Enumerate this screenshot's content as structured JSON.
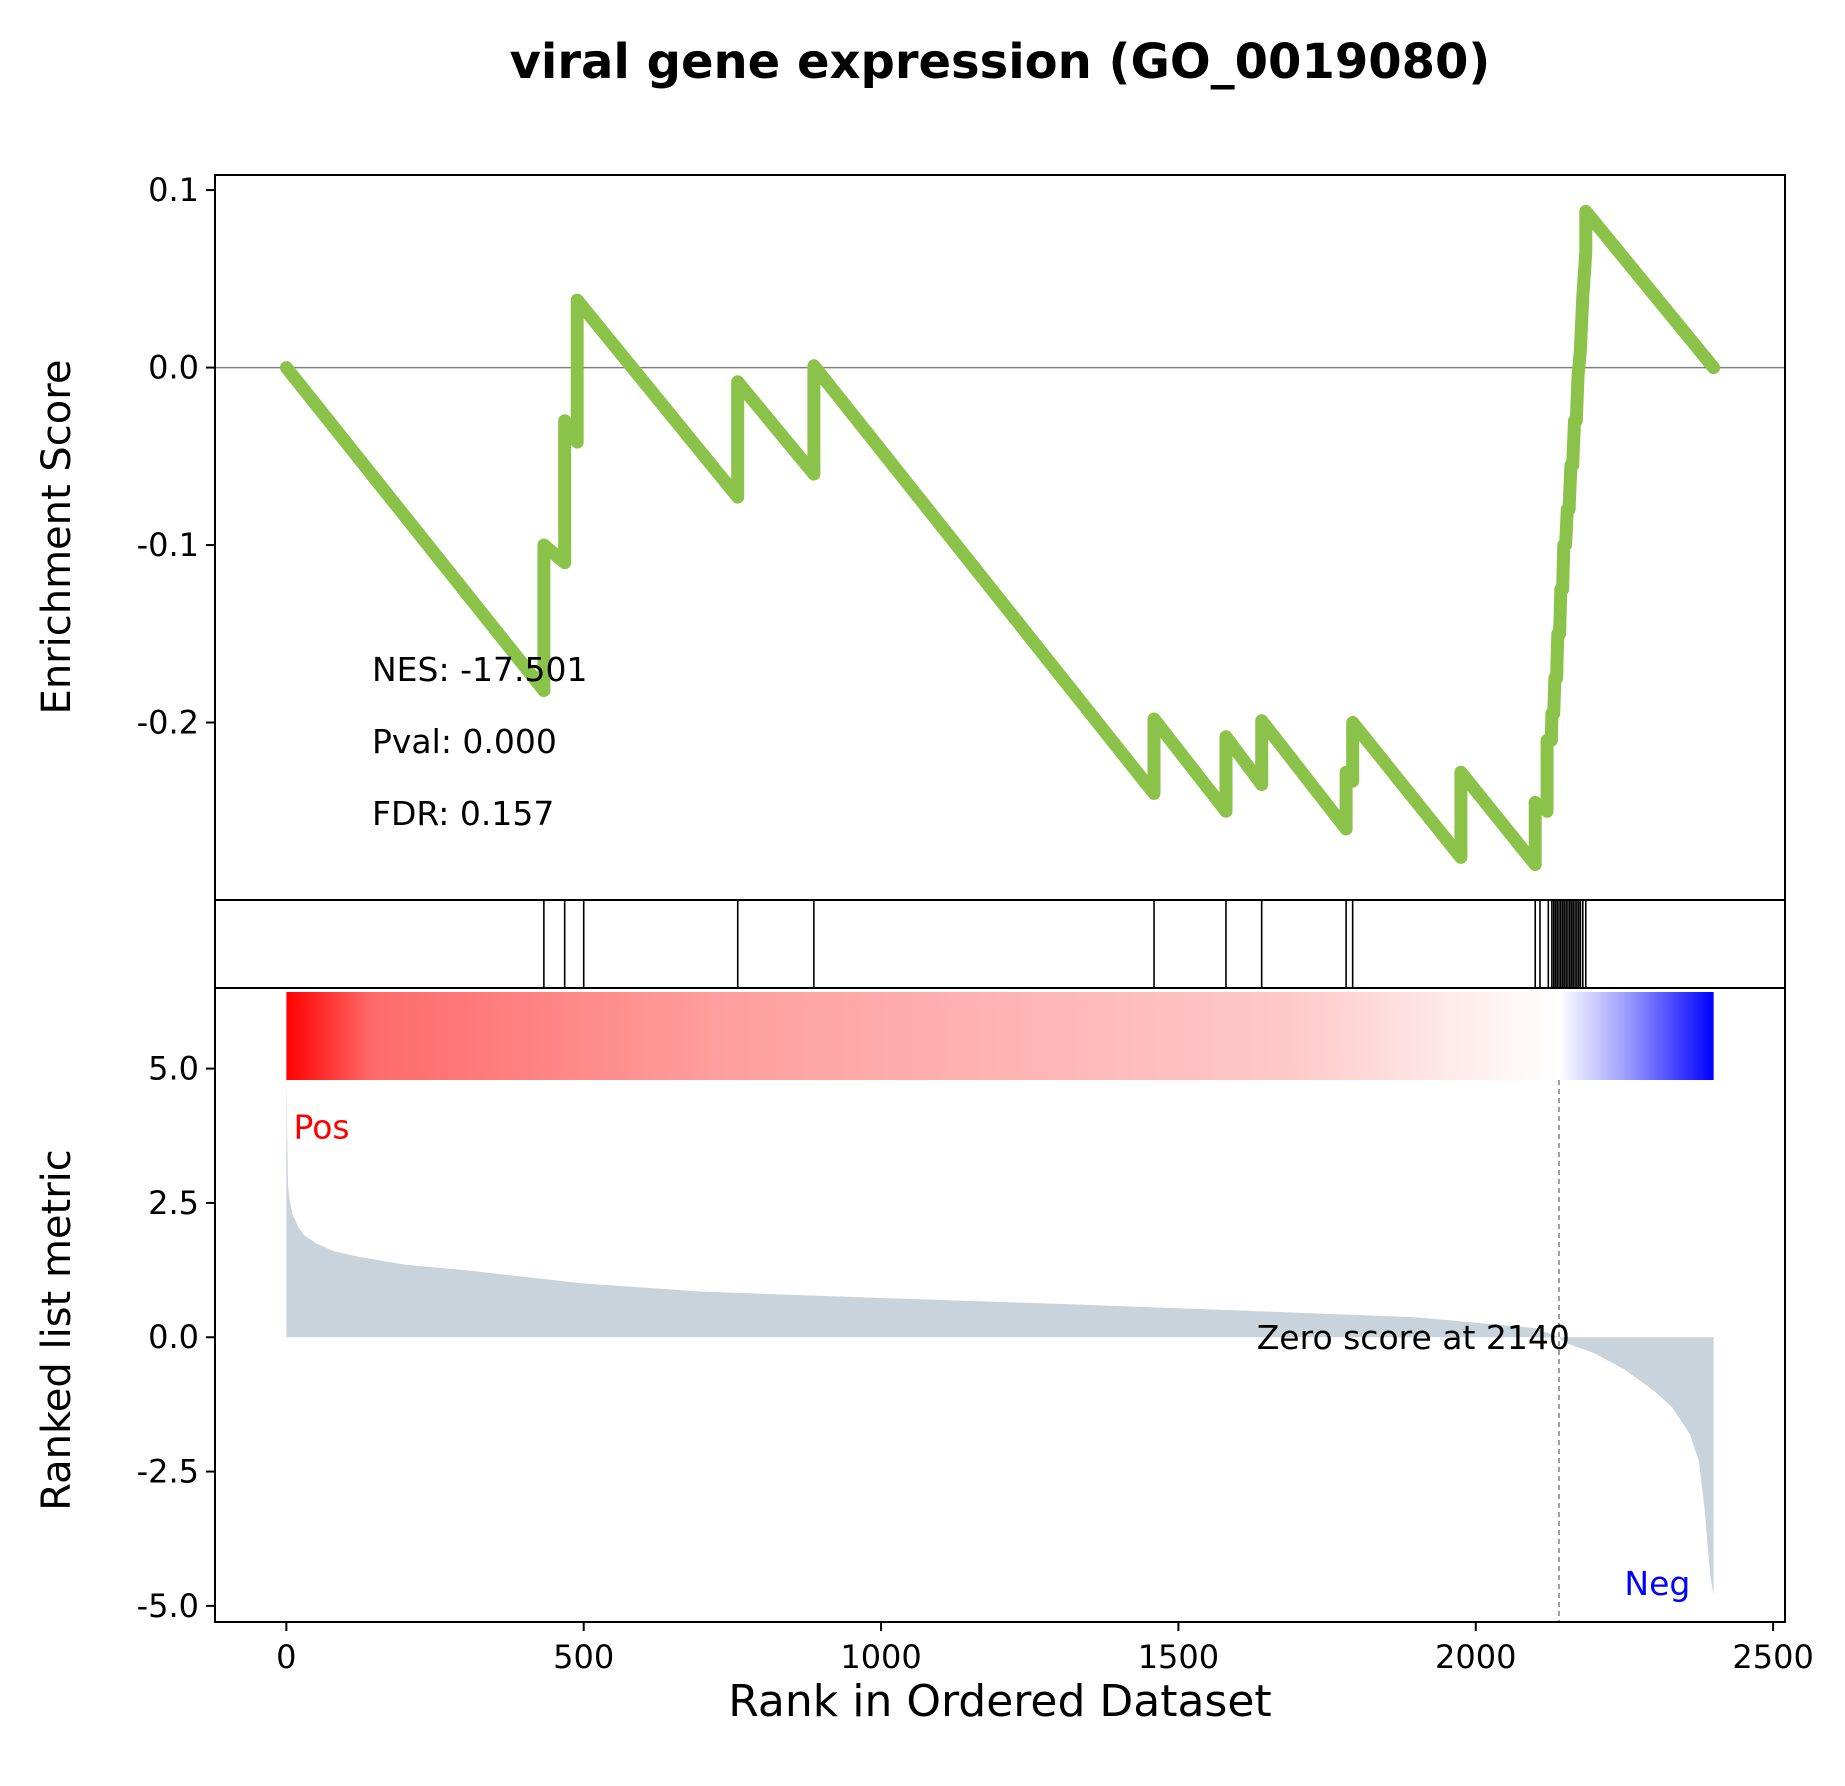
{
  "chart_data": {
    "type": "line",
    "title": "viral gene expression (GO_0019080)",
    "xlabel": "Rank in Ordered Dataset",
    "xlim": [
      -120,
      2520
    ],
    "x_ticks": [
      "0",
      "500",
      "1000",
      "1500",
      "2000",
      "2500"
    ],
    "x_tick_values": [
      0,
      500,
      1000,
      1500,
      2000,
      2500
    ],
    "colors": {
      "es_line": "#8bc34a",
      "metric_fill": "#c9d3db",
      "pos_label": "#ff0000",
      "neg_label": "#0000ff",
      "gradient_pos": "#ff0000",
      "gradient_mid": "#ffffff",
      "gradient_neg": "#0000ff"
    },
    "enrichment": {
      "ylabel": "Enrichment Score",
      "ylim": [
        -0.3,
        0.1
      ],
      "y_ticks": [
        "0.1",
        "0.0",
        "-0.1",
        "-0.2"
      ],
      "y_tick_values": [
        0.1,
        0.0,
        -0.1,
        -0.2
      ],
      "zero_line": true,
      "stats": [
        "NES: -17.501",
        "Pval: 0.000",
        "FDR: 0.157"
      ],
      "series": {
        "x": [
          0,
          433,
          433,
          468,
          468,
          489,
          489,
          759,
          759,
          887,
          887,
          1459,
          1459,
          1580,
          1580,
          1640,
          1640,
          1782,
          1782,
          1793,
          1793,
          1975,
          1975,
          2100,
          2100,
          2120,
          2120,
          2127,
          2128,
          2131,
          2133,
          2136,
          2138,
          2141,
          2143,
          2146,
          2148,
          2151,
          2154,
          2157,
          2160,
          2163,
          2166,
          2169,
          2172,
          2176,
          2180,
          2185,
          2185,
          2400
        ],
        "y": [
          0,
          -0.182,
          -0.1,
          -0.11,
          -0.03,
          -0.042,
          0.038,
          -0.073,
          -0.008,
          -0.06,
          0.001,
          -0.24,
          -0.198,
          -0.25,
          -0.208,
          -0.235,
          -0.199,
          -0.26,
          -0.228,
          -0.233,
          -0.2,
          -0.276,
          -0.228,
          -0.28,
          -0.245,
          -0.25,
          -0.21,
          -0.21,
          -0.195,
          -0.195,
          -0.175,
          -0.175,
          -0.15,
          -0.15,
          -0.125,
          -0.125,
          -0.1,
          -0.1,
          -0.08,
          -0.08,
          -0.055,
          -0.055,
          -0.03,
          -0.03,
          -0.005,
          0.01,
          0.04,
          0.065,
          0.088,
          0.0
        ]
      }
    },
    "hits": {
      "positions": [
        433,
        468,
        500,
        759,
        887,
        1459,
        1580,
        1640,
        1782,
        1793,
        2100,
        2108,
        2122,
        2128,
        2131,
        2134,
        2137,
        2140,
        2143,
        2146,
        2149,
        2152,
        2155,
        2158,
        2161,
        2164,
        2167,
        2170,
        2173,
        2176,
        2180,
        2185
      ]
    },
    "ranked_metric": {
      "ylabel": "Ranked list metric",
      "ylim": [
        -5.3,
        5.3
      ],
      "y_ticks": [
        "5.0",
        "2.5",
        "0.0",
        "-2.5",
        "-5.0"
      ],
      "y_tick_values": [
        5.0,
        2.5,
        0.0,
        -2.5,
        -5.0
      ],
      "n": 2400,
      "zero_cross": 2140,
      "x": [
        0,
        1,
        3,
        5,
        10,
        20,
        30,
        50,
        80,
        120,
        200,
        300,
        500,
        700,
        1000,
        1300,
        1600,
        1900,
        2100,
        2140,
        2150,
        2200,
        2250,
        2300,
        2330,
        2360,
        2375,
        2385,
        2390,
        2395,
        2400
      ],
      "y": [
        5.0,
        4.0,
        2.8,
        2.6,
        2.3,
        2.05,
        1.9,
        1.75,
        1.6,
        1.5,
        1.35,
        1.25,
        1.0,
        0.85,
        0.73,
        0.62,
        0.5,
        0.37,
        0.17,
        0.0,
        -0.1,
        -0.3,
        -0.6,
        -1.0,
        -1.3,
        -1.8,
        -2.3,
        -3.2,
        -3.9,
        -4.5,
        -4.8
      ],
      "pos_label": "Pos",
      "neg_label": "Neg",
      "zero_label": "Zero score at 2140"
    }
  }
}
